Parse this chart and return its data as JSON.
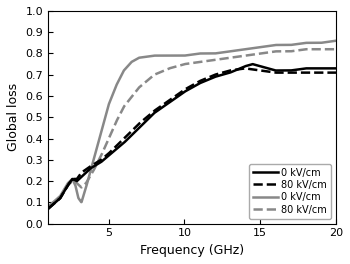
{
  "title": "",
  "xlabel": "Frequency (GHz)",
  "ylabel": "Global loss",
  "xlim": [
    1,
    20
  ],
  "ylim": [
    0.0,
    1.0
  ],
  "xticks": [
    5,
    10,
    15,
    20
  ],
  "yticks": [
    0.0,
    0.1,
    0.2,
    0.3,
    0.4,
    0.5,
    0.6,
    0.7,
    0.8,
    0.9,
    1.0
  ],
  "legend_labels": [
    "0 kV/cm",
    "80 kV/cm",
    "0 kV/cm",
    "80 kV/cm"
  ],
  "legend_styles": [
    {
      "color": "#000000",
      "linestyle": "-",
      "linewidth": 1.8
    },
    {
      "color": "#000000",
      "linestyle": "--",
      "linewidth": 1.8
    },
    {
      "color": "#888888",
      "linestyle": "-",
      "linewidth": 1.8
    },
    {
      "color": "#888888",
      "linestyle": "--",
      "linewidth": 1.8
    }
  ],
  "background_color": "#ffffff"
}
